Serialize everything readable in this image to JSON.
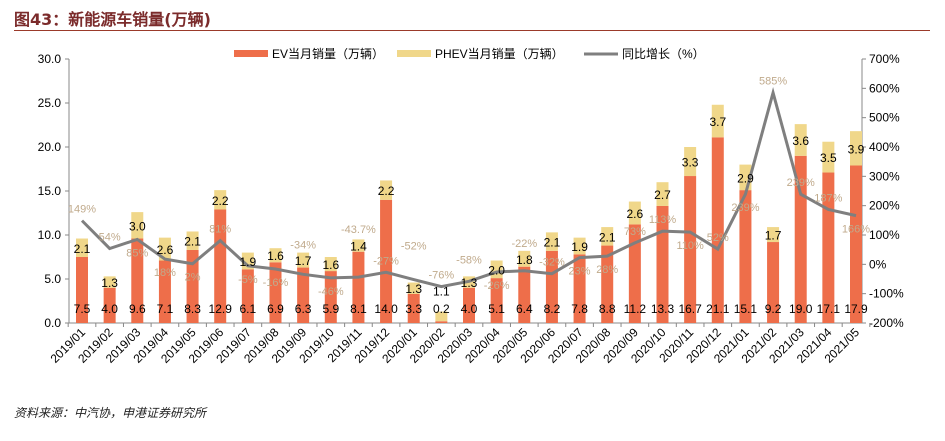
{
  "title": "图43：新能源车销量(万辆)",
  "source": "资料来源：中汽协，申港证券研究所",
  "chart_data": {
    "type": "bar",
    "stacked": true,
    "categories": [
      "2019/01",
      "2019/02",
      "2019/03",
      "2019/04",
      "2019/05",
      "2019/06",
      "2019/07",
      "2019/08",
      "2019/09",
      "2019/10",
      "2019/11",
      "2019/12",
      "2020/01",
      "2020/02",
      "2020/03",
      "2020/04",
      "2020/05",
      "2020/06",
      "2020/07",
      "2020/08",
      "2020/09",
      "2020/10",
      "2020/11",
      "2020/12",
      "2021/01",
      "2021/02",
      "2021/03",
      "2021/04",
      "2021/05"
    ],
    "series": [
      {
        "name": "EV当月销量（万辆）",
        "type": "bar",
        "axis": "left",
        "color": "#ee6e4a",
        "values": [
          7.5,
          4.0,
          9.6,
          7.1,
          8.3,
          12.9,
          6.1,
          6.9,
          6.3,
          5.9,
          8.1,
          14.0,
          3.3,
          0.2,
          4.0,
          5.1,
          6.4,
          8.2,
          7.8,
          8.8,
          11.2,
          13.3,
          16.7,
          21.1,
          15.1,
          9.2,
          19.0,
          17.1,
          17.9
        ]
      },
      {
        "name": "PHEV当月销量（万辆）",
        "type": "bar",
        "axis": "left",
        "color": "#f0d78a",
        "values": [
          2.1,
          1.3,
          3.0,
          2.6,
          2.1,
          2.2,
          1.9,
          1.6,
          1.7,
          1.6,
          1.4,
          2.2,
          1.3,
          1.1,
          1.3,
          2.0,
          1.8,
          2.1,
          1.9,
          2.1,
          2.6,
          2.7,
          3.3,
          3.7,
          2.9,
          1.7,
          3.6,
          3.5,
          3.9
        ]
      },
      {
        "name": "同比增长（%）",
        "type": "line",
        "axis": "right",
        "color": "#7f7f7f",
        "label_color": "#c0aa8c",
        "values": [
          149,
          54,
          85,
          18,
          2,
          81,
          -5,
          -16,
          -34,
          -46,
          -43.7,
          -27,
          -52,
          -76,
          -58,
          -26,
          -22,
          -32,
          23,
          28,
          73,
          113,
          110,
          52,
          239,
          585,
          239,
          187,
          166
        ]
      }
    ],
    "y_left": {
      "range": [
        0,
        30
      ],
      "ticks": [
        "0.0",
        "5.0",
        "10.0",
        "15.0",
        "20.0",
        "25.0",
        "30.0"
      ]
    },
    "y_right": {
      "range": [
        -200,
        700
      ],
      "ticks": [
        "-200%",
        "-100%",
        "0%",
        "100%",
        "200%",
        "300%",
        "400%",
        "500%",
        "600%",
        "700%"
      ]
    },
    "legend_position": "top-center",
    "grid": false
  }
}
